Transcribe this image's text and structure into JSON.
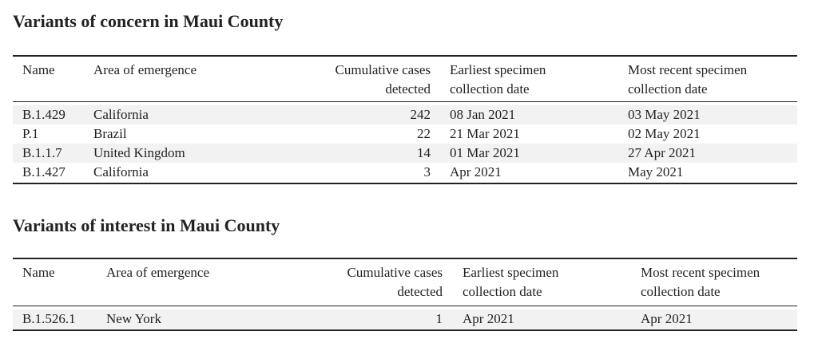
{
  "tables": [
    {
      "title": "Variants of concern in Maui County",
      "headers": [
        "Name",
        "Area of emergence",
        "Cumulative cases detected",
        "Earliest specimen collection date",
        "Most recent specimen collection date"
      ],
      "rows": [
        [
          "B.1.429",
          "California",
          242,
          "08 Jan 2021",
          "03 May 2021"
        ],
        [
          "P.1",
          "Brazil",
          22,
          "21 Mar 2021",
          "02 May 2021"
        ],
        [
          "B.1.1.7",
          "United Kingdom",
          14,
          "01 Mar 2021",
          "27 Apr 2021"
        ],
        [
          "B.1.427",
          "California",
          3,
          "Apr 2021",
          "May 2021"
        ]
      ]
    },
    {
      "title": "Variants of interest in Maui County",
      "headers": [
        "Name",
        "Area of emergence",
        "Cumulative cases detected",
        "Earliest specimen collection date",
        "Most recent specimen collection date"
      ],
      "rows": [
        [
          "B.1.526.1",
          "New York",
          1,
          "Apr 2021",
          "Apr 2021"
        ]
      ]
    }
  ]
}
